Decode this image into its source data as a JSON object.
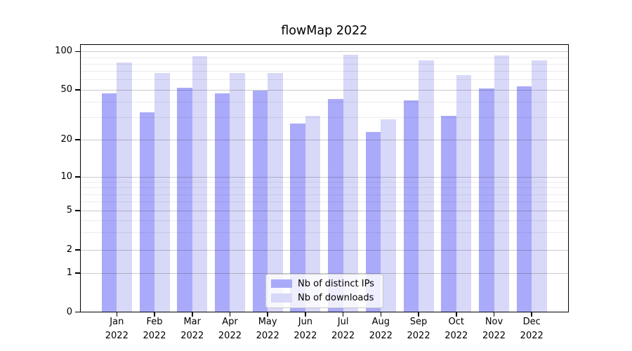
{
  "title": "flowMap 2022",
  "chart_data": {
    "type": "bar",
    "title": "flowMap 2022",
    "scale": "symlog",
    "grid": true,
    "legend_position": "lower center",
    "categories": [
      "Jan 2022",
      "Feb 2022",
      "Mar 2022",
      "Apr 2022",
      "May 2022",
      "Jun 2022",
      "Jul 2022",
      "Aug 2022",
      "Sep 2022",
      "Oct 2022",
      "Nov 2022",
      "Dec 2022"
    ],
    "series": [
      {
        "name": "Nb of distinct IPs",
        "color": "#aaaafa",
        "values": [
          47,
          33,
          52,
          47,
          49,
          27,
          42,
          23,
          41,
          31,
          51,
          53
        ]
      },
      {
        "name": "Nb of downloads",
        "color": "#d8d8f8",
        "values": [
          82,
          68,
          92,
          68,
          68,
          31,
          94,
          29,
          85,
          65,
          93,
          85
        ]
      }
    ],
    "yticks": [
      0,
      1,
      2,
      5,
      10,
      20,
      50,
      100
    ],
    "minor_gridlines": [
      3,
      4,
      6,
      7,
      8,
      9,
      30,
      40,
      60,
      70,
      80,
      90
    ],
    "ylim": [
      0,
      115
    ]
  },
  "colors": {
    "bar_distinct_ips": "#aaaafa",
    "bar_downloads": "#d8d8f8",
    "grid_major": "#cccccc",
    "grid_minor": "#ececec",
    "spine": "#000000",
    "legend_border": "#c8c8c8",
    "background": "#ffffff"
  }
}
